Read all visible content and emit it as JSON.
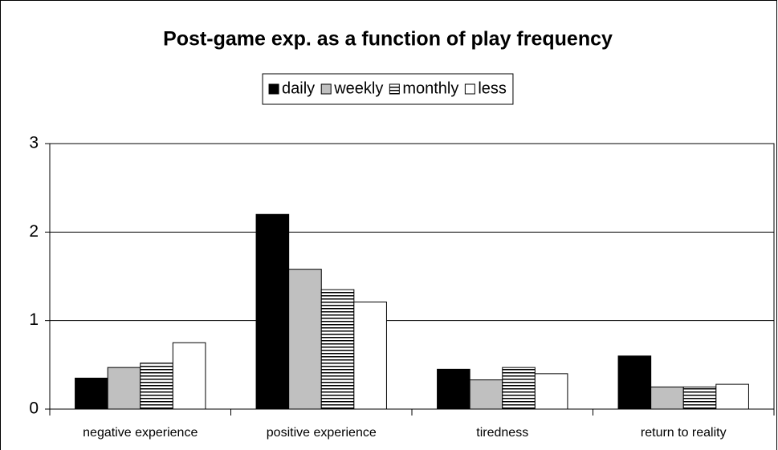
{
  "chart_data": {
    "type": "bar",
    "title": "Post-game exp. as a function of play frequency",
    "categories": [
      "negative experience",
      "positive experience",
      "tiredness",
      "return to reality"
    ],
    "series": [
      {
        "name": "daily",
        "color": "#000000",
        "values": [
          0.35,
          2.2,
          0.45,
          0.6
        ]
      },
      {
        "name": "weekly",
        "color": "#c0c0c0",
        "values": [
          0.47,
          1.58,
          0.33,
          0.25
        ]
      },
      {
        "name": "monthly",
        "color": "#ffffff",
        "pattern": "horizontal-stripes",
        "values": [
          0.52,
          1.35,
          0.47,
          0.25
        ]
      },
      {
        "name": "less",
        "color": "#ffffff",
        "values": [
          0.75,
          1.21,
          0.4,
          0.28
        ]
      }
    ],
    "ylim": [
      0,
      3
    ],
    "yticks": [
      0,
      1,
      2,
      3
    ],
    "grid": true,
    "legend": "top"
  }
}
